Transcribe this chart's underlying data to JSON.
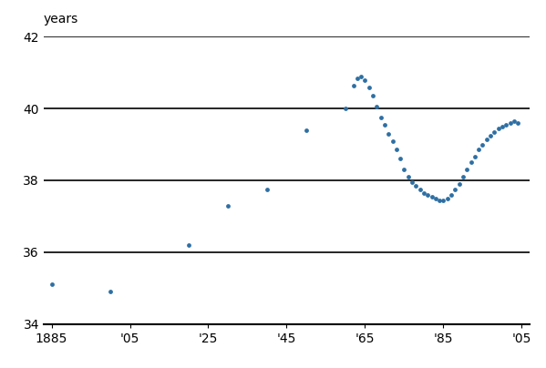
{
  "title": "years",
  "xlim": [
    1883,
    2007
  ],
  "ylim": [
    34,
    42
  ],
  "yticks": [
    34,
    36,
    38,
    40,
    42
  ],
  "xtick_years": [
    1885,
    1905,
    1925,
    1945,
    1965,
    1985,
    2005
  ],
  "xtick_labels": [
    "1885",
    "'05",
    "'25",
    "'45",
    "'65",
    "'85",
    "'05"
  ],
  "dot_color": "#2e6fa3",
  "dot_size": 12,
  "data": [
    [
      1885,
      35.1
    ],
    [
      1900,
      34.9
    ],
    [
      1920,
      36.2
    ],
    [
      1930,
      37.3
    ],
    [
      1940,
      37.75
    ],
    [
      1950,
      39.4
    ],
    [
      1960,
      40.0
    ],
    [
      1962,
      40.65
    ],
    [
      1963,
      40.85
    ],
    [
      1964,
      40.9
    ],
    [
      1965,
      40.8
    ],
    [
      1966,
      40.6
    ],
    [
      1967,
      40.35
    ],
    [
      1968,
      40.05
    ],
    [
      1969,
      39.75
    ],
    [
      1970,
      39.55
    ],
    [
      1971,
      39.3
    ],
    [
      1972,
      39.1
    ],
    [
      1973,
      38.85
    ],
    [
      1974,
      38.6
    ],
    [
      1975,
      38.3
    ],
    [
      1976,
      38.1
    ],
    [
      1977,
      37.95
    ],
    [
      1978,
      37.85
    ],
    [
      1979,
      37.75
    ],
    [
      1980,
      37.65
    ],
    [
      1981,
      37.6
    ],
    [
      1982,
      37.55
    ],
    [
      1983,
      37.5
    ],
    [
      1984,
      37.45
    ],
    [
      1985,
      37.45
    ],
    [
      1986,
      37.5
    ],
    [
      1987,
      37.6
    ],
    [
      1988,
      37.75
    ],
    [
      1989,
      37.9
    ],
    [
      1990,
      38.1
    ],
    [
      1991,
      38.3
    ],
    [
      1992,
      38.5
    ],
    [
      1993,
      38.65
    ],
    [
      1994,
      38.85
    ],
    [
      1995,
      39.0
    ],
    [
      1996,
      39.15
    ],
    [
      1997,
      39.25
    ],
    [
      1998,
      39.35
    ],
    [
      1999,
      39.45
    ],
    [
      2000,
      39.5
    ],
    [
      2001,
      39.55
    ],
    [
      2002,
      39.6
    ],
    [
      2003,
      39.65
    ],
    [
      2004,
      39.6
    ]
  ],
  "background_color": "#ffffff",
  "grid_color": "#000000",
  "grid_linewidth": 1.2
}
